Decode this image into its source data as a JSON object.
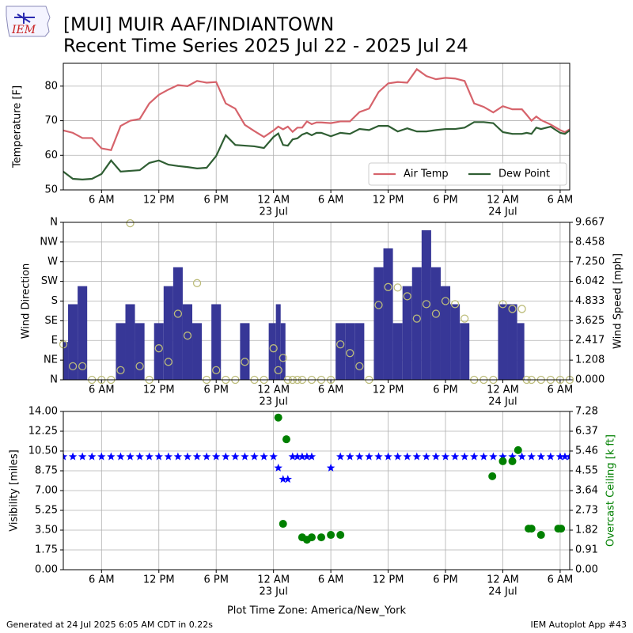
{
  "header": {
    "title": "[MUI] MUIR AAF/INDIANTOWN",
    "subtitle": "Recent Time Series 2025 Jul 22 - 2025 Jul 24",
    "logo": "IEM"
  },
  "footer": {
    "left": "Generated at 24 Jul 2025 6:05 AM CDT in 0.22s",
    "right": "IEM Autoplot App #43"
  },
  "chart_data": [
    {
      "type": "line",
      "ylabel": "Temperature [F]",
      "xlim": [
        2,
        55
      ],
      "xticks": [
        {
          "value": 6,
          "label": "6 AM"
        },
        {
          "value": 12,
          "label": "12 PM"
        },
        {
          "value": 18,
          "label": "6 PM"
        },
        {
          "value": 24,
          "label": "12 AM"
        },
        {
          "value": 30,
          "label": "6 AM"
        },
        {
          "value": 36,
          "label": "12 PM"
        },
        {
          "value": 42,
          "label": "6 PM"
        },
        {
          "value": 48,
          "label": "12 AM"
        },
        {
          "value": 54,
          "label": "6 AM"
        }
      ],
      "x_date_labels": [
        {
          "value": 24,
          "label": "23 Jul"
        },
        {
          "value": 48,
          "label": "24 Jul"
        }
      ],
      "ylim": [
        50,
        86.6
      ],
      "yticks": [
        50,
        60,
        70,
        80
      ],
      "grid": true,
      "legend": "lower right",
      "x": [
        2,
        3,
        4,
        5,
        6,
        7,
        8,
        9,
        10,
        11,
        12,
        13,
        14,
        15,
        16,
        17,
        18,
        19,
        20,
        21,
        22,
        23,
        24,
        24.5,
        25,
        25.5,
        26,
        26.5,
        27,
        27.5,
        28,
        28.5,
        29,
        30,
        31,
        32,
        33,
        34,
        35,
        36,
        37,
        38,
        39,
        40,
        41,
        42,
        43,
        44,
        45,
        46,
        47,
        48,
        49,
        50,
        50.5,
        51,
        51.5,
        52,
        53,
        54,
        54.5,
        55
      ],
      "series": [
        {
          "name": "Air Temp",
          "color": "#d6636b",
          "values": [
            67.2,
            66.5,
            65,
            65,
            62,
            61.5,
            68.5,
            70,
            70.5,
            75,
            77.5,
            79,
            80.3,
            80,
            81.5,
            81,
            81.2,
            75,
            73.5,
            68.8,
            67,
            65.3,
            67.2,
            68.3,
            67.5,
            68.3,
            66.8,
            68,
            68,
            69.8,
            69,
            69.5,
            69.5,
            69.3,
            69.8,
            69.8,
            72.5,
            73.5,
            78.3,
            80.8,
            81.2,
            81,
            84.9,
            82.9,
            82,
            82.4,
            82.2,
            81.5,
            75,
            74,
            72.4,
            74.2,
            73.3,
            73.3,
            71.7,
            70,
            71.2,
            70.2,
            68.9,
            67.3,
            66.7,
            67.5
          ]
        },
        {
          "name": "Dew Point",
          "color": "#2f5e33",
          "values": [
            55.3,
            53.2,
            53,
            53.2,
            54.6,
            58.5,
            55.3,
            55.5,
            55.7,
            57.8,
            58.5,
            57.3,
            56.9,
            56.6,
            56.2,
            56.4,
            59.8,
            65.8,
            63,
            62.8,
            62.6,
            62.1,
            65.3,
            66.3,
            63,
            62.8,
            64.6,
            64.9,
            66,
            66.5,
            65.8,
            66.5,
            66.5,
            65.5,
            66.5,
            66.2,
            67.6,
            67.3,
            68.5,
            68.5,
            66.9,
            67.8,
            66.9,
            66.9,
            67.3,
            67.6,
            67.6,
            68,
            69.6,
            69.6,
            69.3,
            66.7,
            66.2,
            66.2,
            66.5,
            66.2,
            68,
            67.6,
            68.3,
            66.5,
            66.2,
            67.2
          ]
        }
      ]
    },
    {
      "type": "combo",
      "ylabel": "Wind Direction",
      "y2label": "Wind Speed [mph]",
      "xlim": [
        2,
        55
      ],
      "xticks": [
        {
          "value": 6,
          "label": "6 AM"
        },
        {
          "value": 12,
          "label": "12 PM"
        },
        {
          "value": 18,
          "label": "6 PM"
        },
        {
          "value": 24,
          "label": "12 AM"
        },
        {
          "value": 30,
          "label": "6 AM"
        },
        {
          "value": 36,
          "label": "12 PM"
        },
        {
          "value": 42,
          "label": "6 PM"
        },
        {
          "value": 48,
          "label": "12 AM"
        },
        {
          "value": 54,
          "label": "6 AM"
        }
      ],
      "x_date_labels": [
        {
          "value": 24,
          "label": "23 Jul"
        },
        {
          "value": 48,
          "label": "24 Jul"
        }
      ],
      "ylim": [
        0,
        360
      ],
      "yticks": [
        {
          "value": 0,
          "label": "N"
        },
        {
          "value": 45,
          "label": "NE"
        },
        {
          "value": 90,
          "label": "E"
        },
        {
          "value": 135,
          "label": "SE"
        },
        {
          "value": 180,
          "label": "S"
        },
        {
          "value": 225,
          "label": "SW"
        },
        {
          "value": 270,
          "label": "W"
        },
        {
          "value": 315,
          "label": "NW"
        },
        {
          "value": 360,
          "label": "N"
        }
      ],
      "y2lim": [
        0,
        9.667
      ],
      "y2ticks": [
        {
          "value": 0,
          "label": "0.000"
        },
        1.208,
        2.417,
        3.625,
        4.833,
        6.042,
        {
          "value": 7.25,
          "label": "7.250"
        },
        8.458,
        9.667
      ],
      "grid": true,
      "x": [
        2,
        3,
        4,
        5,
        6,
        7,
        8,
        9,
        10,
        11,
        12,
        13,
        14,
        15,
        16,
        17,
        18,
        19,
        20,
        21,
        22,
        23,
        24,
        24.5,
        25,
        25.5,
        26,
        26.5,
        27,
        28,
        29,
        30,
        31,
        32,
        33,
        34,
        35,
        36,
        37,
        38,
        39,
        40,
        41,
        42,
        43,
        44,
        45,
        46,
        47,
        48,
        49,
        50,
        50.5,
        51,
        52,
        53,
        54,
        55
      ],
      "series": [
        {
          "type": "bar",
          "axis": "y2",
          "color": "#373797",
          "values": [
            2.32,
            4.64,
            5.75,
            0,
            0,
            0,
            3.48,
            4.64,
            3.48,
            0,
            3.48,
            5.75,
            6.91,
            4.64,
            3.48,
            0,
            4.64,
            0,
            0,
            3.48,
            0,
            0,
            3.48,
            4.64,
            3.48,
            0,
            0,
            0,
            0,
            0,
            0,
            0,
            3.48,
            3.48,
            3.48,
            0,
            6.91,
            8.07,
            3.48,
            5.75,
            6.91,
            9.18,
            6.91,
            5.75,
            4.64,
            3.48,
            0,
            0,
            0,
            4.64,
            4.64,
            3.48,
            0,
            0,
            0,
            0,
            0,
            0
          ]
        },
        {
          "type": "scatter",
          "axis": "y",
          "color": "#bdbd7b",
          "values": [
            81,
            31,
            31,
            0,
            0,
            0,
            22,
            358,
            31,
            0,
            72,
            41,
            151,
            101,
            221,
            0,
            22,
            0,
            0,
            41,
            0,
            0,
            72,
            22,
            50,
            0,
            0,
            0,
            0,
            0,
            0,
            0,
            81,
            61,
            31,
            0,
            171,
            212,
            211,
            191,
            140,
            173,
            151,
            180,
            173,
            140,
            0,
            0,
            0,
            173,
            162,
            162,
            0,
            0,
            0,
            0,
            0,
            0
          ]
        }
      ]
    },
    {
      "type": "combo",
      "ylabel": "Visibility [miles]",
      "y2label": "Overcast Ceiling [k ft]",
      "xlabel": "Plot Time Zone: America/New_York",
      "xlim": [
        2,
        55
      ],
      "xticks": [
        {
          "value": 6,
          "label": "6 AM"
        },
        {
          "value": 12,
          "label": "12 PM"
        },
        {
          "value": 18,
          "label": "6 PM"
        },
        {
          "value": 24,
          "label": "12 AM"
        },
        {
          "value": 30,
          "label": "6 AM"
        },
        {
          "value": 36,
          "label": "12 PM"
        },
        {
          "value": 42,
          "label": "6 PM"
        },
        {
          "value": 48,
          "label": "12 AM"
        },
        {
          "value": 54,
          "label": "6 AM"
        }
      ],
      "x_date_labels": [
        {
          "value": 24,
          "label": "23 Jul"
        },
        {
          "value": 48,
          "label": "24 Jul"
        }
      ],
      "ylim": [
        0,
        14
      ],
      "yticks": [
        {
          "value": 0,
          "label": "0.00"
        },
        1.75,
        {
          "value": 3.5,
          "label": "3.50"
        },
        5.25,
        {
          "value": 7,
          "label": "7.00"
        },
        8.75,
        {
          "value": 10.5,
          "label": "10.50"
        },
        12.25,
        {
          "value": 14,
          "label": "14.00"
        }
      ],
      "y2lim": [
        0,
        7.28
      ],
      "y2ticks": [
        {
          "value": 0,
          "label": "0.00"
        },
        0.91,
        1.82,
        2.73,
        3.64,
        4.55,
        5.46,
        6.37,
        7.28
      ],
      "grid": true,
      "series": [
        {
          "type": "star",
          "axis": "y",
          "color": "#0000ff",
          "x": [
            2,
            3,
            4,
            5,
            6,
            7,
            8,
            9,
            10,
            11,
            12,
            13,
            14,
            15,
            16,
            17,
            18,
            19,
            20,
            21,
            22,
            23,
            24,
            24.5,
            25,
            25.5,
            26,
            26.5,
            27,
            27.5,
            28,
            30,
            31,
            32,
            33,
            34,
            35,
            36,
            37,
            38,
            39,
            40,
            41,
            42,
            43,
            44,
            45,
            46,
            47,
            48,
            49,
            50,
            51,
            52,
            53,
            54,
            54.5,
            55
          ],
          "values": [
            10,
            10,
            10,
            10,
            10,
            10,
            10,
            10,
            10,
            10,
            10,
            10,
            10,
            10,
            10,
            10,
            10,
            10,
            10,
            10,
            10,
            10,
            10,
            9,
            8,
            8,
            10,
            10,
            10,
            10,
            10,
            9,
            10,
            10,
            10,
            10,
            10,
            10,
            10,
            10,
            10,
            10,
            10,
            10,
            10,
            10,
            10,
            10,
            10,
            10,
            10,
            10,
            10,
            10,
            10,
            10,
            10,
            10
          ]
        },
        {
          "type": "dot",
          "axis": "y2",
          "color": "#008000",
          "x": [
            24.5,
            25,
            25.35,
            27,
            27.5,
            28,
            29,
            30,
            31,
            46.9,
            48,
            49,
            49.6,
            50.7,
            51,
            52,
            53.8,
            54.1
          ],
          "values": [
            7,
            2.11,
            6,
            1.49,
            1.38,
            1.49,
            1.49,
            1.6,
            1.6,
            4.3,
            4.99,
            4.99,
            5.5,
            1.89,
            1.89,
            1.6,
            1.89,
            1.89
          ]
        }
      ]
    }
  ]
}
